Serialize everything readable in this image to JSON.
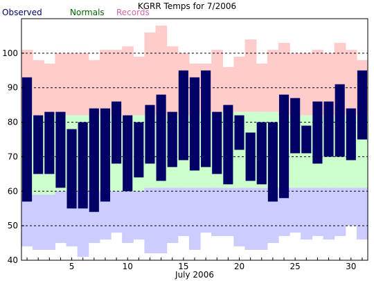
{
  "chart_data": {
    "type": "bar",
    "title": "KGRR Temps for 7/2006",
    "xlabel": "July 2006",
    "ylabel": "",
    "ylim": [
      40,
      110
    ],
    "xlim": [
      0,
      31
    ],
    "x_ticks": [
      5,
      10,
      15,
      20,
      25,
      30
    ],
    "y_ticks": [
      40,
      50,
      60,
      70,
      80,
      90,
      100
    ],
    "grid_lines_y": [
      50,
      60,
      70,
      80,
      90,
      100
    ],
    "grid": true,
    "legend_position": "top-left",
    "legend": [
      {
        "label": "Observed",
        "color": "#000066"
      },
      {
        "label": "Normals",
        "color": "#006600"
      },
      {
        "label": "Records",
        "color": "#cc66aa"
      }
    ],
    "colors": {
      "observed": "#000066",
      "normals": "#ccffcc",
      "records": "#ffcccc",
      "record_low": "#ccccff"
    },
    "days": [
      1,
      2,
      3,
      4,
      5,
      6,
      7,
      8,
      9,
      10,
      11,
      12,
      13,
      14,
      15,
      16,
      17,
      18,
      19,
      20,
      21,
      22,
      23,
      24,
      25,
      26,
      27,
      28,
      29,
      30,
      31
    ],
    "series": [
      {
        "name": "Observed",
        "high": [
          93,
          82,
          83,
          83,
          78,
          80,
          84,
          84,
          86,
          82,
          80,
          85,
          88,
          83,
          95,
          93,
          95,
          83,
          85,
          82,
          77,
          80,
          80,
          88,
          87,
          79,
          86,
          86,
          91,
          84,
          95
        ],
        "low": [
          57,
          65,
          65,
          61,
          55,
          55,
          54,
          57,
          68,
          60,
          64,
          68,
          63,
          67,
          69,
          66,
          67,
          65,
          62,
          72,
          63,
          62,
          57,
          58,
          71,
          71,
          68,
          70,
          70,
          69,
          75
        ]
      },
      {
        "name": "Normals",
        "high": [
          82,
          82,
          82,
          82,
          82,
          82,
          82,
          82,
          82,
          82,
          82,
          82,
          82,
          82,
          82,
          82,
          83,
          83,
          83,
          83,
          83,
          83,
          83,
          82,
          82,
          82,
          82,
          82,
          82,
          82,
          82
        ],
        "low": [
          59,
          59,
          59,
          60,
          60,
          60,
          60,
          60,
          60,
          60,
          60,
          61,
          61,
          61,
          61,
          61,
          61,
          61,
          61,
          61,
          61,
          61,
          61,
          61,
          61,
          61,
          61,
          61,
          61,
          61,
          61
        ]
      },
      {
        "name": "Records",
        "high": [
          101,
          98,
          97,
          100,
          100,
          100,
          98,
          101,
          101,
          102,
          99,
          106,
          108,
          102,
          100,
          97,
          97,
          101,
          96,
          99,
          104,
          97,
          101,
          103,
          100,
          100,
          101,
          100,
          103,
          101,
          98
        ],
        "low": [
          44,
          43,
          43,
          45,
          44,
          41,
          45,
          46,
          48,
          45,
          46,
          42,
          42,
          45,
          47,
          43,
          48,
          47,
          47,
          44,
          43,
          43,
          45,
          47,
          48,
          46,
          47,
          46,
          47,
          50,
          46
        ]
      }
    ]
  }
}
